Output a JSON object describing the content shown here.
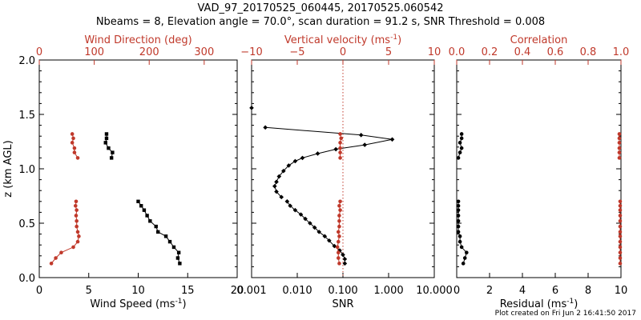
{
  "header": {
    "title": "VAD_97_20170525_060445, 20170525.060542",
    "subtitle": "Nbeams = 8, Elevation angle = 70.0°, scan duration = 91.2 s, SNR Threshold = 0.008"
  },
  "footer": "Plot created on Fri Jun  2 16:41:50 2017",
  "colors": {
    "primary": "#000000",
    "accent": "#c0392b"
  },
  "chart_data": [
    {
      "type": "line",
      "ylabel": "z (km AGL)",
      "ylim": [
        0,
        2
      ],
      "yticks": [
        "0.0",
        "0.5",
        "1.0",
        "1.5",
        "2.0"
      ],
      "bottom_axis": {
        "label": "Wind Speed (ms",
        "label_sup": "-1",
        "label_tail": ")",
        "xlim": [
          0,
          20
        ],
        "ticks": [
          "0",
          "5",
          "10",
          "15",
          "20"
        ],
        "tick_values": [
          0,
          5,
          10,
          15,
          20
        ]
      },
      "top_axis": {
        "label": "Wind Direction (deg)",
        "xlim": [
          0,
          360
        ],
        "ticks": [
          "0",
          "100",
          "200",
          "300"
        ],
        "tick_values": [
          0,
          100,
          200,
          300
        ]
      },
      "series": [
        {
          "axis": "bottom",
          "color": "#000000",
          "marker": "square",
          "segments": [
            [
              [
                14.2,
                0.13
              ],
              [
                14.0,
                0.18
              ],
              [
                14.1,
                0.23
              ],
              [
                13.6,
                0.28
              ],
              [
                13.2,
                0.33
              ],
              [
                12.8,
                0.38
              ],
              [
                12.0,
                0.42
              ],
              [
                11.8,
                0.47
              ],
              [
                11.2,
                0.52
              ],
              [
                10.9,
                0.57
              ],
              [
                10.6,
                0.62
              ],
              [
                10.3,
                0.66
              ],
              [
                10.0,
                0.7
              ]
            ],
            [
              [
                7.3,
                1.1
              ],
              [
                7.4,
                1.15
              ],
              [
                7.0,
                1.19
              ],
              [
                6.7,
                1.24
              ],
              [
                6.8,
                1.28
              ],
              [
                6.8,
                1.32
              ]
            ]
          ]
        },
        {
          "axis": "top",
          "color": "#c0392b",
          "marker": "circle",
          "segments": [
            [
              [
                22,
                0.13
              ],
              [
                30,
                0.18
              ],
              [
                40,
                0.23
              ],
              [
                62,
                0.28
              ],
              [
                70,
                0.33
              ],
              [
                72,
                0.38
              ],
              [
                70,
                0.42
              ],
              [
                68,
                0.47
              ],
              [
                68,
                0.52
              ],
              [
                67,
                0.57
              ],
              [
                68,
                0.62
              ],
              [
                66,
                0.66
              ],
              [
                67,
                0.7
              ]
            ],
            [
              [
                70,
                1.1
              ],
              [
                64,
                1.15
              ],
              [
                64,
                1.19
              ],
              [
                60,
                1.24
              ],
              [
                62,
                1.28
              ],
              [
                60,
                1.32
              ]
            ]
          ]
        }
      ]
    },
    {
      "type": "line",
      "ylim": [
        0,
        2
      ],
      "bottom_axis": {
        "label": "SNR",
        "scale": "log",
        "xlim": [
          0.001,
          10
        ],
        "ticks": [
          "0.001",
          "0.010",
          "0.100",
          "1.000",
          "10.000"
        ],
        "tick_values": [
          0.001,
          0.01,
          0.1,
          1,
          10
        ]
      },
      "top_axis": {
        "label": "Vertical velocity (ms",
        "label_sup": "-1",
        "label_tail": ")",
        "xlim": [
          -10,
          10
        ],
        "ticks": [
          "−10",
          "−5",
          "0",
          "5",
          "10"
        ],
        "tick_values": [
          -10,
          -5,
          0,
          5,
          10
        ],
        "zero_line": true
      },
      "series": [
        {
          "axis": "bottom",
          "color": "#000000",
          "marker": "diamond",
          "segments": [
            [
              [
                0.11,
                0.13
              ],
              [
                0.11,
                0.17
              ],
              [
                0.1,
                0.21
              ],
              [
                0.085,
                0.25
              ],
              [
                0.065,
                0.29
              ],
              [
                0.05,
                0.34
              ],
              [
                0.04,
                0.38
              ],
              [
                0.03,
                0.42
              ],
              [
                0.024,
                0.46
              ],
              [
                0.019,
                0.5
              ],
              [
                0.015,
                0.54
              ],
              [
                0.012,
                0.58
              ],
              [
                0.009,
                0.62
              ],
              [
                0.007,
                0.66
              ],
              [
                0.006,
                0.7
              ]
            ],
            [
              [
                0.0045,
                0.74
              ],
              [
                0.0035,
                0.79
              ],
              [
                0.0032,
                0.84
              ],
              [
                0.0035,
                0.88
              ],
              [
                0.004,
                0.93
              ],
              [
                0.005,
                0.98
              ],
              [
                0.0065,
                1.03
              ],
              [
                0.009,
                1.07
              ],
              [
                0.013,
                1.1
              ],
              [
                0.028,
                1.14
              ],
              [
                0.07,
                1.18
              ],
              [
                0.3,
                1.22
              ],
              [
                1.2,
                1.27
              ],
              [
                0.25,
                1.31
              ],
              [
                0.002,
                1.38
              ]
            ],
            [
              [
                0.001,
                1.56
              ]
            ]
          ]
        },
        {
          "axis": "top",
          "color": "#c0392b",
          "marker": "circle",
          "segments": [
            [
              [
                -0.4,
                0.13
              ],
              [
                -0.5,
                0.18
              ],
              [
                -0.5,
                0.23
              ],
              [
                -0.6,
                0.28
              ],
              [
                -0.5,
                0.33
              ],
              [
                -0.4,
                0.38
              ],
              [
                -0.5,
                0.42
              ],
              [
                -0.4,
                0.47
              ],
              [
                -0.4,
                0.52
              ],
              [
                -0.4,
                0.57
              ],
              [
                -0.3,
                0.62
              ],
              [
                -0.4,
                0.66
              ],
              [
                -0.3,
                0.7
              ]
            ],
            [
              [
                -0.3,
                1.1
              ],
              [
                -0.3,
                1.15
              ],
              [
                -0.3,
                1.19
              ],
              [
                -0.3,
                1.24
              ],
              [
                -0.2,
                1.28
              ],
              [
                -0.3,
                1.32
              ]
            ]
          ]
        }
      ]
    },
    {
      "type": "line",
      "ylim": [
        0,
        2
      ],
      "bottom_axis": {
        "label": "Residual (ms",
        "label_sup": "-1",
        "label_tail": ")",
        "xlim": [
          0,
          10
        ],
        "ticks": [
          "0",
          "2",
          "4",
          "6",
          "8",
          "10"
        ],
        "tick_values": [
          0,
          2,
          4,
          6,
          8,
          10
        ]
      },
      "top_axis": {
        "label": "Correlation",
        "xlim": [
          0,
          1
        ],
        "ticks": [
          "0.0",
          "0.2",
          "0.4",
          "0.6",
          "0.8",
          "1.0"
        ],
        "tick_values": [
          0,
          0.2,
          0.4,
          0.6,
          0.8,
          1.0
        ]
      },
      "series": [
        {
          "axis": "bottom",
          "color": "#000000",
          "marker": "circle",
          "segments": [
            [
              [
                0.4,
                0.13
              ],
              [
                0.5,
                0.18
              ],
              [
                0.6,
                0.23
              ],
              [
                0.3,
                0.28
              ],
              [
                0.2,
                0.33
              ],
              [
                0.2,
                0.38
              ],
              [
                0.1,
                0.42
              ],
              [
                0.1,
                0.47
              ],
              [
                0.1,
                0.52
              ],
              [
                0.1,
                0.57
              ],
              [
                0.1,
                0.62
              ],
              [
                0.1,
                0.66
              ],
              [
                0.1,
                0.7
              ]
            ],
            [
              [
                0.1,
                1.1
              ],
              [
                0.2,
                1.15
              ],
              [
                0.3,
                1.19
              ],
              [
                0.2,
                1.24
              ],
              [
                0.3,
                1.28
              ],
              [
                0.3,
                1.32
              ]
            ]
          ]
        },
        {
          "axis": "top",
          "color": "#c0392b",
          "marker": "circle",
          "segments": [
            [
              [
                0.995,
                0.13
              ],
              [
                0.995,
                0.18
              ],
              [
                0.995,
                0.23
              ],
              [
                0.995,
                0.28
              ],
              [
                0.995,
                0.33
              ],
              [
                0.995,
                0.38
              ],
              [
                0.995,
                0.42
              ],
              [
                0.995,
                0.47
              ],
              [
                0.995,
                0.52
              ],
              [
                0.995,
                0.57
              ],
              [
                0.995,
                0.62
              ],
              [
                0.995,
                0.66
              ],
              [
                0.995,
                0.7
              ]
            ],
            [
              [
                0.99,
                1.1
              ],
              [
                0.99,
                1.15
              ],
              [
                0.99,
                1.19
              ],
              [
                0.99,
                1.24
              ],
              [
                0.99,
                1.28
              ],
              [
                0.99,
                1.32
              ]
            ]
          ]
        }
      ]
    }
  ]
}
